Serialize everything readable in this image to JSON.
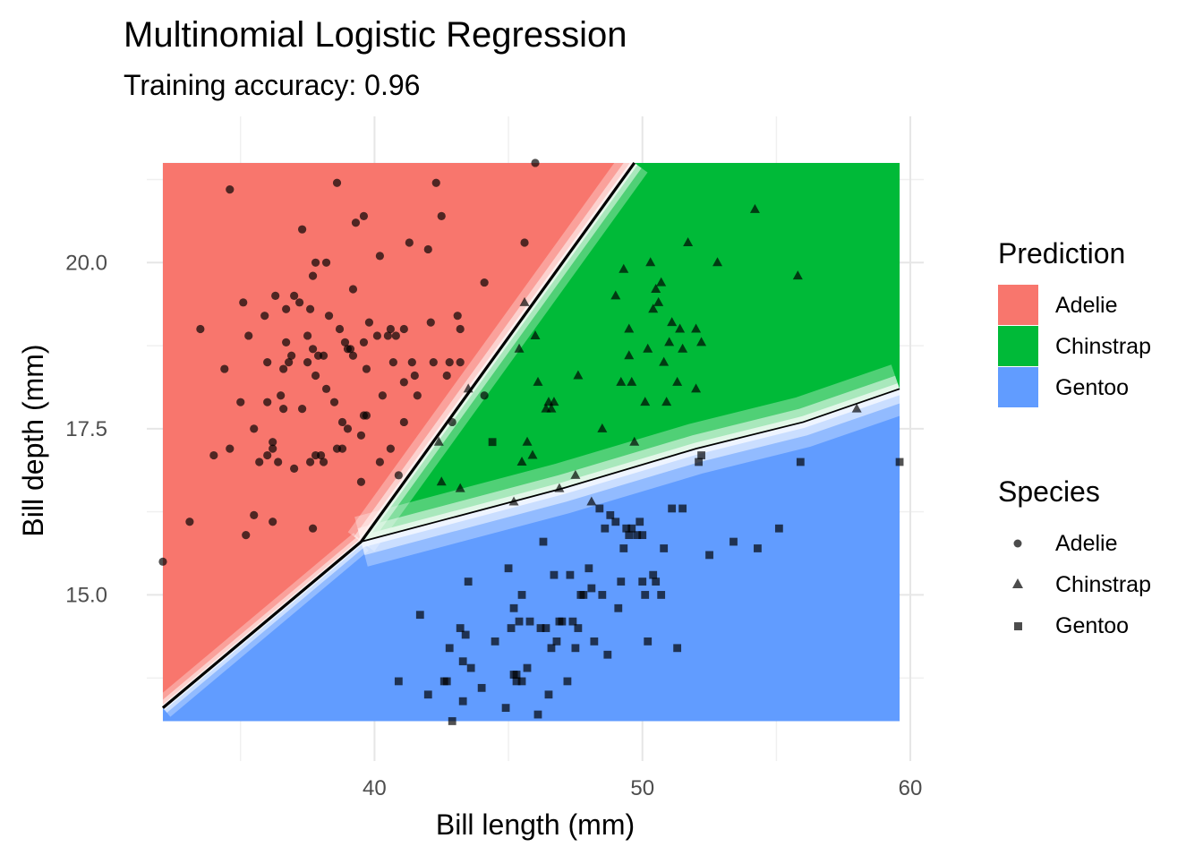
{
  "chart_data": {
    "type": "scatter",
    "title": "Multinomial Logistic Regression",
    "subtitle": "Training accuracy: 0.96",
    "xlabel": "Bill length (mm)",
    "ylabel": "Bill depth (mm)",
    "xlim": [
      31.5,
      60.5
    ],
    "ylim": [
      12.5,
      22.2
    ],
    "region_extent": {
      "x": [
        32.1,
        59.6
      ],
      "y": [
        13.1,
        21.5
      ]
    },
    "x_ticks": [
      40,
      50,
      60
    ],
    "x_tick_labels": [
      "40",
      "50",
      "60"
    ],
    "y_ticks": [
      15.0,
      17.5,
      20.0
    ],
    "y_tick_labels": [
      "15.0",
      "17.5",
      "20.0"
    ],
    "grid": true,
    "legend_position": "right",
    "prediction_legend": {
      "title": "Prediction",
      "items": [
        {
          "label": "Adelie",
          "color": "#F8766D"
        },
        {
          "label": "Chinstrap",
          "color": "#00BA38"
        },
        {
          "label": "Gentoo",
          "color": "#619CFF"
        }
      ]
    },
    "species_legend": {
      "title": "Species",
      "items": [
        {
          "label": "Adelie",
          "shape": "circle"
        },
        {
          "label": "Chinstrap",
          "shape": "triangle"
        },
        {
          "label": "Gentoo",
          "shape": "square"
        }
      ]
    },
    "decision_boundaries": [
      {
        "between": "Adelie-Gentoo",
        "points": [
          [
            32.1,
            13.3
          ],
          [
            39.5,
            15.8
          ]
        ]
      },
      {
        "between": "Adelie-Chinstrap",
        "points": [
          [
            39.5,
            15.8
          ],
          [
            49.7,
            21.5
          ]
        ]
      },
      {
        "between": "Chinstrap-Gentoo",
        "points": [
          [
            39.5,
            15.8
          ],
          [
            47,
            16.6
          ],
          [
            52,
            17.2
          ],
          [
            56,
            17.6
          ],
          [
            59.6,
            18.1
          ]
        ]
      }
    ],
    "series": [
      {
        "name": "Adelie",
        "shape": "circle",
        "points": [
          [
            32.1,
            15.5
          ],
          [
            33.1,
            16.1
          ],
          [
            33.5,
            19.0
          ],
          [
            34.0,
            17.1
          ],
          [
            34.4,
            18.4
          ],
          [
            34.6,
            21.1
          ],
          [
            34.6,
            17.2
          ],
          [
            35.0,
            17.9
          ],
          [
            35.1,
            19.4
          ],
          [
            35.2,
            15.9
          ],
          [
            35.3,
            18.9
          ],
          [
            35.5,
            16.2
          ],
          [
            35.5,
            17.5
          ],
          [
            35.7,
            17.0
          ],
          [
            35.9,
            19.2
          ],
          [
            36.0,
            18.5
          ],
          [
            36.0,
            17.9
          ],
          [
            36.0,
            17.1
          ],
          [
            36.2,
            17.2
          ],
          [
            36.2,
            16.1
          ],
          [
            36.2,
            17.3
          ],
          [
            36.3,
            19.5
          ],
          [
            36.4,
            17.0
          ],
          [
            36.5,
            18.0
          ],
          [
            36.6,
            17.8
          ],
          [
            36.6,
            18.4
          ],
          [
            36.7,
            18.8
          ],
          [
            36.7,
            19.3
          ],
          [
            36.8,
            18.5
          ],
          [
            36.9,
            18.6
          ],
          [
            37.0,
            16.9
          ],
          [
            37.0,
            19.5
          ],
          [
            37.2,
            19.4
          ],
          [
            37.3,
            20.5
          ],
          [
            37.3,
            17.8
          ],
          [
            37.5,
            18.9
          ],
          [
            37.5,
            18.5
          ],
          [
            37.6,
            19.3
          ],
          [
            37.6,
            17.0
          ],
          [
            37.7,
            18.7
          ],
          [
            37.7,
            19.8
          ],
          [
            37.7,
            16.0
          ],
          [
            37.8,
            17.1
          ],
          [
            37.8,
            18.3
          ],
          [
            37.8,
            20.0
          ],
          [
            37.9,
            18.6
          ],
          [
            38.0,
            17.1
          ],
          [
            38.1,
            18.6
          ],
          [
            38.1,
            17.0
          ],
          [
            38.2,
            18.1
          ],
          [
            38.2,
            20.0
          ],
          [
            38.3,
            19.2
          ],
          [
            38.5,
            17.9
          ],
          [
            38.6,
            21.2
          ],
          [
            38.6,
            17.2
          ],
          [
            38.7,
            19.0
          ],
          [
            38.8,
            17.2
          ],
          [
            38.8,
            17.6
          ],
          [
            38.9,
            18.8
          ],
          [
            39.0,
            17.5
          ],
          [
            39.0,
            18.7
          ],
          [
            39.1,
            18.7
          ],
          [
            39.2,
            19.6
          ],
          [
            39.2,
            18.6
          ],
          [
            39.3,
            20.6
          ],
          [
            39.5,
            16.7
          ],
          [
            39.5,
            17.4
          ],
          [
            39.6,
            17.7
          ],
          [
            39.6,
            20.7
          ],
          [
            39.6,
            18.8
          ],
          [
            39.7,
            18.4
          ],
          [
            39.7,
            17.7
          ],
          [
            39.8,
            19.1
          ],
          [
            40.1,
            18.9
          ],
          [
            40.2,
            17.0
          ],
          [
            40.2,
            20.1
          ],
          [
            40.3,
            18.0
          ],
          [
            40.5,
            18.9
          ],
          [
            40.6,
            17.2
          ],
          [
            40.6,
            19.0
          ],
          [
            40.7,
            18.5
          ],
          [
            40.8,
            18.9
          ],
          [
            40.9,
            16.8
          ],
          [
            41.1,
            19.0
          ],
          [
            41.1,
            18.2
          ],
          [
            41.1,
            17.6
          ],
          [
            41.3,
            20.3
          ],
          [
            41.4,
            18.5
          ],
          [
            41.5,
            18.3
          ],
          [
            41.6,
            18.0
          ],
          [
            42.0,
            20.2
          ],
          [
            42.1,
            19.1
          ],
          [
            42.2,
            18.5
          ],
          [
            42.3,
            21.2
          ],
          [
            42.5,
            20.7
          ],
          [
            42.7,
            18.3
          ],
          [
            42.8,
            18.5
          ],
          [
            42.9,
            17.6
          ],
          [
            43.2,
            19.0
          ],
          [
            43.1,
            19.2
          ],
          [
            43.2,
            18.5
          ],
          [
            44.1,
            18.0
          ],
          [
            44.1,
            19.7
          ],
          [
            45.6,
            20.3
          ],
          [
            46.0,
            21.5
          ]
        ]
      },
      {
        "name": "Chinstrap",
        "shape": "triangle",
        "points": [
          [
            42.4,
            17.3
          ],
          [
            42.5,
            16.7
          ],
          [
            43.2,
            16.6
          ],
          [
            43.5,
            18.1
          ],
          [
            45.2,
            16.4
          ],
          [
            45.4,
            18.7
          ],
          [
            45.5,
            17.0
          ],
          [
            45.6,
            19.4
          ],
          [
            45.7,
            17.3
          ],
          [
            45.9,
            17.1
          ],
          [
            46.0,
            18.9
          ],
          [
            46.1,
            18.2
          ],
          [
            46.4,
            17.8
          ],
          [
            46.5,
            17.9
          ],
          [
            46.6,
            17.8
          ],
          [
            46.7,
            17.9
          ],
          [
            46.9,
            16.6
          ],
          [
            47.5,
            16.8
          ],
          [
            47.6,
            18.3
          ],
          [
            48.1,
            16.4
          ],
          [
            48.5,
            17.5
          ],
          [
            49.0,
            19.5
          ],
          [
            49.2,
            18.2
          ],
          [
            49.3,
            19.9
          ],
          [
            49.5,
            19.0
          ],
          [
            49.6,
            18.2
          ],
          [
            49.7,
            17.3
          ],
          [
            50.2,
            18.7
          ],
          [
            50.3,
            20.0
          ],
          [
            50.5,
            19.6
          ],
          [
            50.6,
            19.4
          ],
          [
            50.7,
            19.7
          ],
          [
            50.8,
            18.5
          ],
          [
            50.9,
            17.9
          ],
          [
            51.0,
            18.8
          ],
          [
            51.3,
            18.2
          ],
          [
            51.4,
            19.0
          ],
          [
            51.5,
            18.7
          ],
          [
            52.0,
            18.1
          ],
          [
            52.0,
            19.0
          ],
          [
            52.2,
            18.8
          ],
          [
            52.8,
            20.0
          ],
          [
            54.2,
            20.8
          ],
          [
            55.8,
            19.8
          ],
          [
            58.0,
            17.8
          ],
          [
            50.1,
            17.9
          ],
          [
            50.4,
            19.3
          ],
          [
            49.5,
            18.6
          ],
          [
            51.1,
            19.1
          ],
          [
            51.7,
            20.3
          ]
        ]
      },
      {
        "name": "Gentoo",
        "shape": "square",
        "points": [
          [
            40.9,
            13.7
          ],
          [
            41.7,
            14.7
          ],
          [
            42.0,
            13.5
          ],
          [
            42.6,
            13.7
          ],
          [
            42.7,
            13.7
          ],
          [
            42.8,
            14.2
          ],
          [
            42.9,
            13.1
          ],
          [
            43.2,
            14.5
          ],
          [
            43.3,
            13.4
          ],
          [
            43.3,
            14.0
          ],
          [
            43.4,
            14.4
          ],
          [
            43.5,
            15.2
          ],
          [
            43.6,
            13.9
          ],
          [
            44.0,
            13.6
          ],
          [
            44.4,
            17.3
          ],
          [
            44.5,
            14.3
          ],
          [
            44.9,
            13.3
          ],
          [
            45.0,
            15.4
          ],
          [
            45.1,
            14.5
          ],
          [
            45.2,
            13.8
          ],
          [
            45.2,
            14.8
          ],
          [
            45.3,
            13.7
          ],
          [
            45.4,
            14.6
          ],
          [
            45.5,
            13.7
          ],
          [
            45.5,
            15.0
          ],
          [
            45.7,
            13.9
          ],
          [
            45.8,
            14.6
          ],
          [
            46.1,
            13.2
          ],
          [
            46.2,
            14.5
          ],
          [
            46.3,
            15.8
          ],
          [
            46.4,
            14.5
          ],
          [
            46.5,
            13.5
          ],
          [
            46.7,
            15.3
          ],
          [
            46.8,
            14.3
          ],
          [
            47.0,
            14.6
          ],
          [
            47.2,
            13.7
          ],
          [
            47.4,
            14.6
          ],
          [
            47.5,
            14.2
          ],
          [
            47.6,
            14.5
          ],
          [
            47.8,
            15.0
          ],
          [
            48.1,
            15.1
          ],
          [
            48.2,
            14.3
          ],
          [
            48.4,
            16.3
          ],
          [
            48.5,
            15.0
          ],
          [
            48.7,
            14.1
          ],
          [
            48.8,
            16.2
          ],
          [
            49.0,
            16.1
          ],
          [
            49.1,
            14.8
          ],
          [
            49.2,
            15.2
          ],
          [
            49.3,
            15.7
          ],
          [
            49.4,
            16.0
          ],
          [
            49.5,
            15.9
          ],
          [
            49.8,
            15.9
          ],
          [
            49.9,
            16.1
          ],
          [
            50.0,
            15.2
          ],
          [
            50.1,
            15.0
          ],
          [
            50.2,
            14.3
          ],
          [
            50.4,
            15.3
          ],
          [
            50.5,
            15.2
          ],
          [
            50.7,
            15.0
          ],
          [
            50.8,
            15.7
          ],
          [
            51.1,
            16.3
          ],
          [
            51.3,
            14.2
          ],
          [
            51.5,
            16.3
          ],
          [
            52.1,
            17.0
          ],
          [
            52.2,
            17.1
          ],
          [
            52.5,
            15.6
          ],
          [
            53.4,
            15.8
          ],
          [
            54.3,
            15.7
          ],
          [
            55.1,
            16.0
          ],
          [
            55.9,
            17.0
          ],
          [
            59.6,
            17.0
          ],
          [
            47.3,
            15.3
          ],
          [
            46.9,
            14.6
          ],
          [
            48.6,
            16.0
          ],
          [
            49.6,
            16.0
          ],
          [
            45.3,
            13.8
          ],
          [
            46.6,
            14.2
          ],
          [
            47.7,
            15.0
          ],
          [
            48.0,
            15.4
          ],
          [
            50.0,
            15.9
          ]
        ]
      }
    ]
  }
}
